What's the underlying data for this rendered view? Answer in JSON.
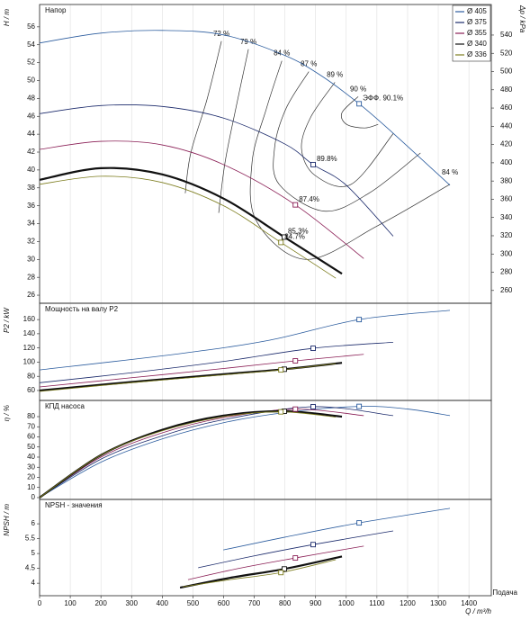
{
  "chart_data": [
    {
      "type": "line",
      "title": "Напор",
      "ylabel": "H / m",
      "y2label": "Δp / kPa",
      "ylim": [
        25.1,
        58.5
      ],
      "yticks": [
        26,
        28,
        30,
        32,
        34,
        36,
        38,
        40,
        42,
        44,
        46,
        48,
        50,
        52,
        54,
        56
      ],
      "y2lim": [
        246,
        573.5
      ],
      "y2ticks": [
        260,
        280,
        300,
        320,
        340,
        360,
        380,
        400,
        420,
        440,
        460,
        480,
        500,
        520,
        540
      ],
      "legend": "upper right",
      "series": [
        {
          "name": "Ø 405",
          "color": "#2b5c9e",
          "x": [
            0,
            200,
            400,
            600,
            800,
            920,
            1042,
            1150,
            1338
          ],
          "values": [
            54.2,
            55.3,
            55.6,
            55.1,
            52.8,
            50.5,
            47.4,
            44.2,
            38.3
          ]
        },
        {
          "name": "Ø 375",
          "color": "#1b2a6b",
          "x": [
            0,
            200,
            400,
            600,
            800,
            892,
            1000,
            1153
          ],
          "values": [
            46.3,
            47.2,
            47.1,
            45.8,
            42.9,
            40.6,
            38.3,
            32.6
          ]
        },
        {
          "name": "Ø 355",
          "color": "#8a1e55",
          "x": [
            0,
            200,
            400,
            600,
            834,
            1057
          ],
          "values": [
            42.3,
            43.2,
            42.8,
            40.6,
            36.1,
            30.1
          ]
        },
        {
          "name": "Ø 340",
          "color": "#111111",
          "x": [
            0,
            200,
            400,
            600,
            798,
            986
          ],
          "values": [
            38.9,
            40.2,
            39.5,
            36.8,
            32.5,
            28.4
          ]
        },
        {
          "name": "Ø 336",
          "color": "#7d7d1e",
          "x": [
            0,
            200,
            400,
            600,
            787,
            966
          ],
          "values": [
            38.4,
            39.3,
            38.6,
            36.0,
            31.9,
            27.9
          ]
        }
      ],
      "markers": [
        {
          "x": 1042,
          "y": 47.4,
          "label": "ЭФФ. 90.1%"
        },
        {
          "x": 892,
          "y": 40.6,
          "label": "89.8%"
        },
        {
          "x": 834,
          "y": 36.1,
          "label": "87.4%"
        },
        {
          "x": 798,
          "y": 32.5,
          "label": "85.3%"
        },
        {
          "x": 787,
          "y": 31.9,
          "label": "84.7%"
        }
      ],
      "iso_lines": [
        {
          "labels": [
            "72 %"
          ],
          "x": [
            593,
            546,
            493,
            475
          ],
          "y": [
            54.4,
            47.9,
            41.9,
            37.4
          ]
        },
        {
          "labels": [
            "79 %"
          ],
          "x": [
            681,
            640,
            605,
            584
          ],
          "y": [
            53.5,
            46.9,
            40.9,
            35.2
          ]
        },
        {
          "labels": [
            "84 %",
            "84 %"
          ],
          "x": [
            790,
            740,
            693,
            707,
            869,
            1104,
            1338
          ],
          "y": [
            52.2,
            46.9,
            40.9,
            34.3,
            30.0,
            33.8,
            38.4
          ]
        },
        {
          "labels": [
            "87 %"
          ],
          "x": [
            878,
            804,
            766,
            781,
            927,
            1074,
            1242
          ],
          "y": [
            51.0,
            46.9,
            42.4,
            38.4,
            35.4,
            37.4,
            41.9
          ]
        },
        {
          "labels": [
            "89 %"
          ],
          "x": [
            963,
            884,
            854,
            898,
            1016,
            1154
          ],
          "y": [
            49.8,
            45.9,
            42.4,
            39.4,
            38.4,
            44.1
          ]
        },
        {
          "labels": [
            "90 %"
          ],
          "x": [
            1039,
            986,
            1001,
            1060,
            1104
          ],
          "y": [
            48.2,
            46.4,
            45.1,
            44.7,
            45.1
          ]
        }
      ]
    },
    {
      "type": "line",
      "title": "Мощность на валу P2",
      "ylabel": "P2 / kW",
      "ylim": [
        46,
        183
      ],
      "yticks": [
        60,
        80,
        100,
        120,
        140,
        160
      ],
      "series": [
        {
          "color": "#2b5c9e",
          "x": [
            0,
            458,
            751,
            1042,
            1338
          ],
          "values": [
            89,
            112,
            131,
            160,
            173
          ]
        },
        {
          "color": "#1b2a6b",
          "x": [
            0,
            300,
            600,
            892,
            1153
          ],
          "values": [
            71,
            85,
            101,
            119.5,
            128
          ]
        },
        {
          "color": "#8a1e55",
          "x": [
            0,
            300,
            600,
            834,
            1057
          ],
          "values": [
            65,
            78,
            91,
            101.8,
            111
          ]
        },
        {
          "color": "#111111",
          "x": [
            0,
            300,
            600,
            798,
            986
          ],
          "values": [
            60,
            72,
            83,
            90,
            99
          ]
        },
        {
          "color": "#7d7d1e",
          "x": [
            0,
            300,
            600,
            787,
            966
          ],
          "values": [
            58.7,
            71,
            82,
            89,
            98
          ]
        }
      ],
      "markers": [
        {
          "x": 1042,
          "y": 160
        },
        {
          "x": 892,
          "y": 119.5
        },
        {
          "x": 834,
          "y": 101.8
        },
        {
          "x": 798,
          "y": 90
        },
        {
          "x": 787,
          "y": 89
        }
      ]
    },
    {
      "type": "line",
      "title": "КПД насоса",
      "ylabel": "η / %",
      "ylim": [
        -1.8,
        96
      ],
      "yticks": [
        0,
        10,
        20,
        30,
        40,
        50,
        60,
        70,
        80
      ],
      "series": [
        {
          "color": "#2b5c9e",
          "x": [
            0,
            200,
            400,
            600,
            800,
            1042,
            1200,
            1338
          ],
          "values": [
            0,
            35,
            58,
            74,
            84,
            90.1,
            87.5,
            81
          ]
        },
        {
          "color": "#1b2a6b",
          "x": [
            0,
            200,
            400,
            600,
            892,
            1153
          ],
          "values": [
            0,
            38,
            61,
            77,
            89.8,
            81
          ]
        },
        {
          "color": "#8a1e55",
          "x": [
            0,
            200,
            400,
            600,
            834,
            1057
          ],
          "values": [
            0,
            40,
            64,
            79,
            87.4,
            81
          ]
        },
        {
          "color": "#111111",
          "x": [
            0,
            200,
            400,
            600,
            798,
            986
          ],
          "values": [
            0,
            42,
            67,
            81,
            85.3,
            80
          ]
        },
        {
          "color": "#7d7d1e",
          "x": [
            0,
            200,
            400,
            600,
            787,
            966
          ],
          "values": [
            0,
            42,
            66,
            80,
            84.7,
            79.5
          ]
        }
      ],
      "markers": [
        {
          "x": 1042,
          "y": 90.1
        },
        {
          "x": 892,
          "y": 89.8
        },
        {
          "x": 834,
          "y": 87.4
        },
        {
          "x": 798,
          "y": 85.3
        },
        {
          "x": 787,
          "y": 84.7
        }
      ]
    },
    {
      "type": "line",
      "title": "NPSH - значения",
      "ylabel": "NPSH / m",
      "xlabel": "Q / m³/h",
      "xnote": "Подача",
      "ylim": [
        3.58,
        6.82
      ],
      "yticks": [
        4,
        4.5,
        5,
        5.5,
        6
      ],
      "xlim": [
        0,
        1473
      ],
      "xticks": [
        0,
        100,
        200,
        300,
        400,
        500,
        600,
        700,
        800,
        900,
        1000,
        1100,
        1200,
        1300,
        1400
      ],
      "grid": true,
      "series": [
        {
          "color": "#2b5c9e",
          "x": [
            599,
            800,
            1042,
            1338
          ],
          "values": [
            5.12,
            5.55,
            6.03,
            6.52
          ]
        },
        {
          "color": "#1b2a6b",
          "x": [
            517,
            700,
            892,
            1153
          ],
          "values": [
            4.52,
            4.92,
            5.3,
            5.76
          ]
        },
        {
          "color": "#8a1e55",
          "x": [
            484,
            650,
            834,
            1057
          ],
          "values": [
            4.12,
            4.5,
            4.85,
            5.25
          ]
        },
        {
          "color": "#111111",
          "x": [
            458,
            620,
            798,
            986
          ],
          "values": [
            3.85,
            4.18,
            4.48,
            4.9
          ]
        },
        {
          "color": "#7d7d1e",
          "x": [
            467,
            620,
            787,
            966
          ],
          "values": [
            3.88,
            4.12,
            4.36,
            4.79
          ]
        }
      ],
      "markers": [
        {
          "x": 1042,
          "y": 6.03
        },
        {
          "x": 892,
          "y": 5.3
        },
        {
          "x": 834,
          "y": 4.85
        },
        {
          "x": 798,
          "y": 4.48
        },
        {
          "x": 787,
          "y": 4.36
        }
      ]
    }
  ]
}
